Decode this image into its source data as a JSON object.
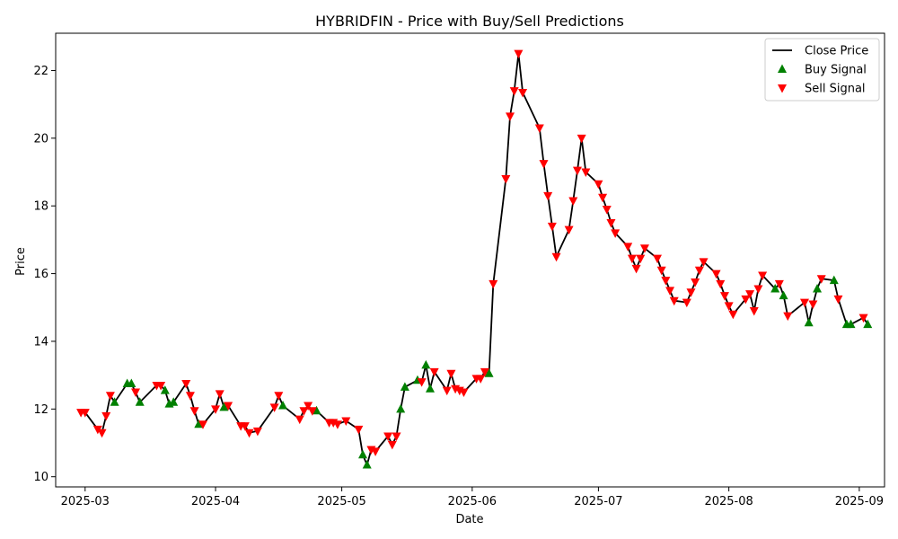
{
  "chart_data": {
    "type": "line",
    "title": "HYBRIDFIN - Price with Buy/Sell Predictions",
    "xlabel": "Date",
    "ylabel": "Price",
    "xlim": [
      "2025-02-22",
      "2025-09-07"
    ],
    "ylim": [
      9.7,
      23.1
    ],
    "grid": false,
    "legend_position": "top-right",
    "x_ticks": [
      {
        "date": "2025-03-01",
        "label": "2025-03"
      },
      {
        "date": "2025-04-01",
        "label": "2025-04"
      },
      {
        "date": "2025-05-01",
        "label": "2025-05"
      },
      {
        "date": "2025-06-01",
        "label": "2025-06"
      },
      {
        "date": "2025-07-01",
        "label": "2025-07"
      },
      {
        "date": "2025-08-01",
        "label": "2025-08"
      },
      {
        "date": "2025-09-01",
        "label": "2025-09"
      }
    ],
    "y_ticks": [
      10,
      12,
      14,
      16,
      18,
      20,
      22
    ],
    "colors": {
      "line": "#000000",
      "buy": "#008000",
      "sell": "#ff0000"
    },
    "legend": [
      {
        "label": "Close Price",
        "kind": "line"
      },
      {
        "label": "Buy Signal",
        "kind": "buy"
      },
      {
        "label": "Sell Signal",
        "kind": "sell"
      }
    ],
    "series": [
      {
        "name": "Close Price",
        "kind": "line",
        "points": [
          [
            "2025-02-28",
            11.9
          ],
          [
            "2025-03-01",
            11.9
          ],
          [
            "2025-03-04",
            11.4
          ],
          [
            "2025-03-05",
            11.3
          ],
          [
            "2025-03-06",
            11.8
          ],
          [
            "2025-03-07",
            12.4
          ],
          [
            "2025-03-08",
            12.2
          ],
          [
            "2025-03-11",
            12.75
          ],
          [
            "2025-03-12",
            12.75
          ],
          [
            "2025-03-13",
            12.5
          ],
          [
            "2025-03-14",
            12.2
          ],
          [
            "2025-03-18",
            12.7
          ],
          [
            "2025-03-19",
            12.7
          ],
          [
            "2025-03-20",
            12.55
          ],
          [
            "2025-03-21",
            12.15
          ],
          [
            "2025-03-22",
            12.2
          ],
          [
            "2025-03-25",
            12.75
          ],
          [
            "2025-03-26",
            12.4
          ],
          [
            "2025-03-27",
            11.95
          ],
          [
            "2025-03-28",
            11.55
          ],
          [
            "2025-03-29",
            11.55
          ],
          [
            "2025-04-01",
            12.0
          ],
          [
            "2025-04-02",
            12.45
          ],
          [
            "2025-04-03",
            12.05
          ],
          [
            "2025-04-04",
            12.1
          ],
          [
            "2025-04-07",
            11.5
          ],
          [
            "2025-04-08",
            11.5
          ],
          [
            "2025-04-09",
            11.3
          ],
          [
            "2025-04-11",
            11.35
          ],
          [
            "2025-04-15",
            12.05
          ],
          [
            "2025-04-16",
            12.4
          ],
          [
            "2025-04-17",
            12.1
          ],
          [
            "2025-04-21",
            11.7
          ],
          [
            "2025-04-22",
            11.95
          ],
          [
            "2025-04-23",
            12.1
          ],
          [
            "2025-04-24",
            11.95
          ],
          [
            "2025-04-25",
            11.95
          ],
          [
            "2025-04-28",
            11.6
          ],
          [
            "2025-04-29",
            11.6
          ],
          [
            "2025-04-30",
            11.55
          ],
          [
            "2025-05-02",
            11.65
          ],
          [
            "2025-05-05",
            11.4
          ],
          [
            "2025-05-06",
            10.65
          ],
          [
            "2025-05-07",
            10.35
          ],
          [
            "2025-05-08",
            10.8
          ],
          [
            "2025-05-09",
            10.75
          ],
          [
            "2025-05-12",
            11.2
          ],
          [
            "2025-05-13",
            10.95
          ],
          [
            "2025-05-14",
            11.2
          ],
          [
            "2025-05-15",
            12.0
          ],
          [
            "2025-05-16",
            12.65
          ],
          [
            "2025-05-19",
            12.85
          ],
          [
            "2025-05-20",
            12.8
          ],
          [
            "2025-05-21",
            13.3
          ],
          [
            "2025-05-22",
            12.6
          ],
          [
            "2025-05-23",
            13.1
          ],
          [
            "2025-05-26",
            12.55
          ],
          [
            "2025-05-27",
            13.05
          ],
          [
            "2025-05-28",
            12.6
          ],
          [
            "2025-05-29",
            12.55
          ],
          [
            "2025-05-30",
            12.5
          ],
          [
            "2025-06-02",
            12.9
          ],
          [
            "2025-06-03",
            12.9
          ],
          [
            "2025-06-04",
            13.1
          ],
          [
            "2025-06-05",
            13.05
          ],
          [
            "2025-06-06",
            15.7
          ],
          [
            "2025-06-09",
            18.8
          ],
          [
            "2025-06-10",
            20.65
          ],
          [
            "2025-06-11",
            21.4
          ],
          [
            "2025-06-12",
            22.5
          ],
          [
            "2025-06-13",
            21.35
          ],
          [
            "2025-06-17",
            20.3
          ],
          [
            "2025-06-18",
            19.25
          ],
          [
            "2025-06-19",
            18.3
          ],
          [
            "2025-06-20",
            17.4
          ],
          [
            "2025-06-21",
            16.5
          ],
          [
            "2025-06-24",
            17.3
          ],
          [
            "2025-06-25",
            18.15
          ],
          [
            "2025-06-26",
            19.05
          ],
          [
            "2025-06-27",
            20.0
          ],
          [
            "2025-06-28",
            19.0
          ],
          [
            "2025-07-01",
            18.65
          ],
          [
            "2025-07-02",
            18.25
          ],
          [
            "2025-07-03",
            17.9
          ],
          [
            "2025-07-04",
            17.5
          ],
          [
            "2025-07-05",
            17.2
          ],
          [
            "2025-07-08",
            16.8
          ],
          [
            "2025-07-09",
            16.45
          ],
          [
            "2025-07-10",
            16.15
          ],
          [
            "2025-07-11",
            16.45
          ],
          [
            "2025-07-12",
            16.75
          ],
          [
            "2025-07-15",
            16.45
          ],
          [
            "2025-07-16",
            16.1
          ],
          [
            "2025-07-17",
            15.8
          ],
          [
            "2025-07-18",
            15.5
          ],
          [
            "2025-07-19",
            15.2
          ],
          [
            "2025-07-22",
            15.15
          ],
          [
            "2025-07-23",
            15.45
          ],
          [
            "2025-07-24",
            15.75
          ],
          [
            "2025-07-25",
            16.1
          ],
          [
            "2025-07-26",
            16.35
          ],
          [
            "2025-07-29",
            16.0
          ],
          [
            "2025-07-30",
            15.7
          ],
          [
            "2025-07-31",
            15.35
          ],
          [
            "2025-08-01",
            15.05
          ],
          [
            "2025-08-02",
            14.8
          ],
          [
            "2025-08-05",
            15.25
          ],
          [
            "2025-08-06",
            15.4
          ],
          [
            "2025-08-07",
            14.9
          ],
          [
            "2025-08-08",
            15.55
          ],
          [
            "2025-08-09",
            15.95
          ],
          [
            "2025-08-12",
            15.55
          ],
          [
            "2025-08-13",
            15.7
          ],
          [
            "2025-08-14",
            15.35
          ],
          [
            "2025-08-15",
            14.75
          ],
          [
            "2025-08-19",
            15.15
          ],
          [
            "2025-08-20",
            14.55
          ],
          [
            "2025-08-21",
            15.1
          ],
          [
            "2025-08-22",
            15.55
          ],
          [
            "2025-08-23",
            15.85
          ],
          [
            "2025-08-26",
            15.8
          ],
          [
            "2025-08-27",
            15.25
          ],
          [
            "2025-08-29",
            14.5
          ],
          [
            "2025-08-30",
            14.5
          ],
          [
            "2025-09-02",
            14.7
          ],
          [
            "2025-09-03",
            14.5
          ]
        ]
      },
      {
        "name": "Buy Signal",
        "kind": "buy",
        "points": [
          [
            "2025-03-08",
            12.2
          ],
          [
            "2025-03-11",
            12.75
          ],
          [
            "2025-03-12",
            12.75
          ],
          [
            "2025-03-14",
            12.2
          ],
          [
            "2025-03-20",
            12.55
          ],
          [
            "2025-03-21",
            12.15
          ],
          [
            "2025-03-22",
            12.2
          ],
          [
            "2025-03-28",
            11.55
          ],
          [
            "2025-04-03",
            12.05
          ],
          [
            "2025-04-17",
            12.1
          ],
          [
            "2025-04-25",
            11.95
          ],
          [
            "2025-05-06",
            10.65
          ],
          [
            "2025-05-07",
            10.35
          ],
          [
            "2025-05-15",
            12.0
          ],
          [
            "2025-05-16",
            12.65
          ],
          [
            "2025-05-19",
            12.85
          ],
          [
            "2025-05-21",
            13.3
          ],
          [
            "2025-05-22",
            12.6
          ],
          [
            "2025-06-05",
            13.05
          ],
          [
            "2025-08-12",
            15.55
          ],
          [
            "2025-08-14",
            15.35
          ],
          [
            "2025-08-20",
            14.55
          ],
          [
            "2025-08-22",
            15.55
          ],
          [
            "2025-08-26",
            15.8
          ],
          [
            "2025-08-29",
            14.5
          ],
          [
            "2025-08-30",
            14.5
          ],
          [
            "2025-09-03",
            14.5
          ]
        ]
      },
      {
        "name": "Sell Signal",
        "kind": "sell",
        "points": [
          [
            "2025-02-28",
            11.9
          ],
          [
            "2025-03-01",
            11.9
          ],
          [
            "2025-03-04",
            11.4
          ],
          [
            "2025-03-05",
            11.3
          ],
          [
            "2025-03-06",
            11.8
          ],
          [
            "2025-03-07",
            12.4
          ],
          [
            "2025-03-13",
            12.5
          ],
          [
            "2025-03-18",
            12.7
          ],
          [
            "2025-03-19",
            12.7
          ],
          [
            "2025-03-25",
            12.75
          ],
          [
            "2025-03-26",
            12.4
          ],
          [
            "2025-03-27",
            11.95
          ],
          [
            "2025-03-29",
            11.55
          ],
          [
            "2025-04-01",
            12.0
          ],
          [
            "2025-04-02",
            12.45
          ],
          [
            "2025-04-04",
            12.1
          ],
          [
            "2025-04-07",
            11.5
          ],
          [
            "2025-04-08",
            11.5
          ],
          [
            "2025-04-09",
            11.3
          ],
          [
            "2025-04-11",
            11.35
          ],
          [
            "2025-04-15",
            12.05
          ],
          [
            "2025-04-16",
            12.4
          ],
          [
            "2025-04-21",
            11.7
          ],
          [
            "2025-04-22",
            11.95
          ],
          [
            "2025-04-23",
            12.1
          ],
          [
            "2025-04-24",
            11.95
          ],
          [
            "2025-04-28",
            11.6
          ],
          [
            "2025-04-29",
            11.6
          ],
          [
            "2025-04-30",
            11.55
          ],
          [
            "2025-05-02",
            11.65
          ],
          [
            "2025-05-05",
            11.4
          ],
          [
            "2025-05-08",
            10.8
          ],
          [
            "2025-05-09",
            10.75
          ],
          [
            "2025-05-12",
            11.2
          ],
          [
            "2025-05-13",
            10.95
          ],
          [
            "2025-05-14",
            11.2
          ],
          [
            "2025-05-20",
            12.8
          ],
          [
            "2025-05-23",
            13.1
          ],
          [
            "2025-05-26",
            12.55
          ],
          [
            "2025-05-27",
            13.05
          ],
          [
            "2025-05-28",
            12.6
          ],
          [
            "2025-05-29",
            12.55
          ],
          [
            "2025-05-30",
            12.5
          ],
          [
            "2025-06-02",
            12.9
          ],
          [
            "2025-06-03",
            12.9
          ],
          [
            "2025-06-04",
            13.1
          ],
          [
            "2025-06-06",
            15.7
          ],
          [
            "2025-06-09",
            18.8
          ],
          [
            "2025-06-10",
            20.65
          ],
          [
            "2025-06-11",
            21.4
          ],
          [
            "2025-06-12",
            22.5
          ],
          [
            "2025-06-13",
            21.35
          ],
          [
            "2025-06-17",
            20.3
          ],
          [
            "2025-06-18",
            19.25
          ],
          [
            "2025-06-19",
            18.3
          ],
          [
            "2025-06-20",
            17.4
          ],
          [
            "2025-06-21",
            16.5
          ],
          [
            "2025-06-24",
            17.3
          ],
          [
            "2025-06-25",
            18.15
          ],
          [
            "2025-06-26",
            19.05
          ],
          [
            "2025-06-27",
            20.0
          ],
          [
            "2025-06-28",
            19.0
          ],
          [
            "2025-07-01",
            18.65
          ],
          [
            "2025-07-02",
            18.25
          ],
          [
            "2025-07-03",
            17.9
          ],
          [
            "2025-07-04",
            17.5
          ],
          [
            "2025-07-05",
            17.2
          ],
          [
            "2025-07-08",
            16.8
          ],
          [
            "2025-07-09",
            16.45
          ],
          [
            "2025-07-10",
            16.15
          ],
          [
            "2025-07-11",
            16.45
          ],
          [
            "2025-07-12",
            16.75
          ],
          [
            "2025-07-15",
            16.45
          ],
          [
            "2025-07-16",
            16.1
          ],
          [
            "2025-07-17",
            15.8
          ],
          [
            "2025-07-18",
            15.5
          ],
          [
            "2025-07-19",
            15.2
          ],
          [
            "2025-07-22",
            15.15
          ],
          [
            "2025-07-23",
            15.45
          ],
          [
            "2025-07-24",
            15.75
          ],
          [
            "2025-07-25",
            16.1
          ],
          [
            "2025-07-26",
            16.35
          ],
          [
            "2025-07-29",
            16.0
          ],
          [
            "2025-07-30",
            15.7
          ],
          [
            "2025-07-31",
            15.35
          ],
          [
            "2025-08-01",
            15.05
          ],
          [
            "2025-08-02",
            14.8
          ],
          [
            "2025-08-05",
            15.25
          ],
          [
            "2025-08-06",
            15.4
          ],
          [
            "2025-08-07",
            14.9
          ],
          [
            "2025-08-08",
            15.55
          ],
          [
            "2025-08-09",
            15.95
          ],
          [
            "2025-08-13",
            15.7
          ],
          [
            "2025-08-15",
            14.75
          ],
          [
            "2025-08-19",
            15.15
          ],
          [
            "2025-08-21",
            15.1
          ],
          [
            "2025-08-23",
            15.85
          ],
          [
            "2025-08-27",
            15.25
          ],
          [
            "2025-09-02",
            14.7
          ]
        ]
      }
    ]
  }
}
